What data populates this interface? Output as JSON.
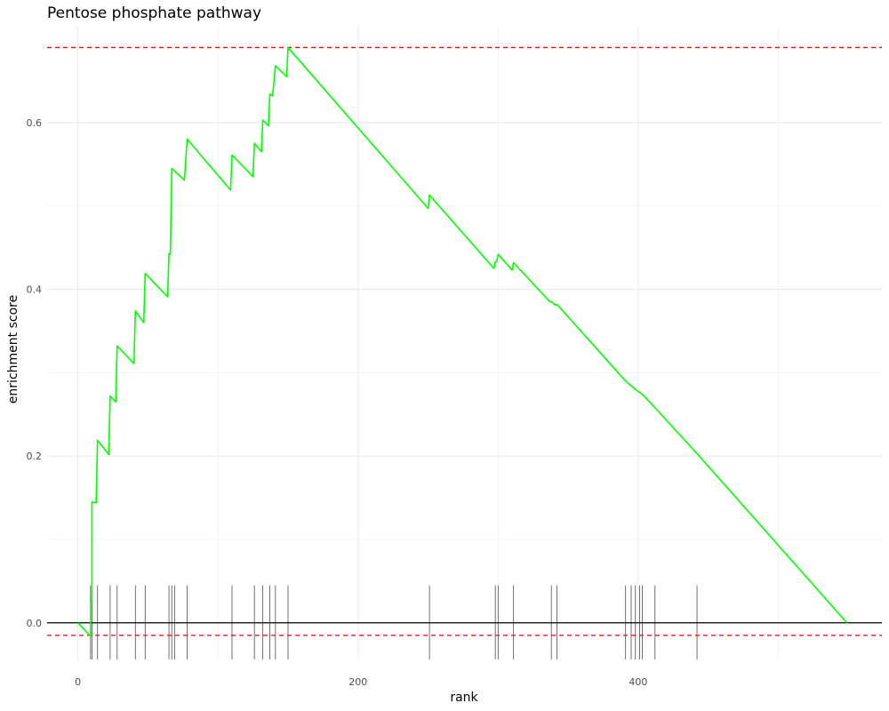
{
  "chart_data": {
    "type": "line",
    "title": "Pentose phosphate pathway",
    "xlabel": "rank",
    "ylabel": "enrichment score",
    "xlim": [
      -22,
      574
    ],
    "ylim": [
      -0.045,
      0.715
    ],
    "x_ticks": [
      0,
      200,
      400
    ],
    "y_ticks": [
      0.0,
      0.2,
      0.4,
      0.6
    ],
    "y_tick_labels": [
      "0.0",
      "0.2",
      "0.4",
      "0.6"
    ],
    "grid": true,
    "colors": {
      "running_score": "#00ff00",
      "threshold": "#ff0000",
      "baseline": "#000000",
      "hits": "#4d4d4d",
      "grid": "#ebebeb"
    },
    "thresholds": {
      "max": 0.69,
      "min": -0.015
    },
    "hit_ranks": [
      9,
      10,
      14,
      23,
      28,
      41,
      48,
      65,
      67,
      69,
      78,
      110,
      126,
      132,
      137,
      141,
      150,
      251,
      298,
      300,
      311,
      338,
      342,
      391,
      395,
      398,
      401,
      403,
      412,
      442
    ],
    "series": [
      {
        "values": [
          [
            0,
            0.0
          ],
          [
            9,
            -0.016
          ],
          [
            9,
            0.027
          ],
          [
            10,
            0.026
          ],
          [
            10,
            0.145
          ],
          [
            13,
            0.144
          ],
          [
            14,
            0.219
          ],
          [
            22,
            0.202
          ],
          [
            23,
            0.272
          ],
          [
            27,
            0.265
          ],
          [
            28,
            0.332
          ],
          [
            40,
            0.311
          ],
          [
            41,
            0.374
          ],
          [
            47,
            0.36
          ],
          [
            48,
            0.419
          ],
          [
            64,
            0.391
          ],
          [
            65,
            0.443
          ],
          [
            66,
            0.442
          ],
          [
            67,
            0.545
          ],
          [
            76,
            0.531
          ],
          [
            78,
            0.58
          ],
          [
            109,
            0.519
          ],
          [
            110,
            0.561
          ],
          [
            125,
            0.535
          ],
          [
            126,
            0.575
          ],
          [
            131,
            0.565
          ],
          [
            132,
            0.603
          ],
          [
            136,
            0.596
          ],
          [
            137,
            0.634
          ],
          [
            139,
            0.632
          ],
          [
            141,
            0.668
          ],
          [
            149,
            0.655
          ],
          [
            150,
            0.69
          ],
          [
            250,
            0.497
          ],
          [
            251,
            0.513
          ],
          [
            297,
            0.425
          ],
          [
            298,
            0.433
          ],
          [
            299,
            0.433
          ],
          [
            300,
            0.442
          ],
          [
            310,
            0.423
          ],
          [
            311,
            0.432
          ],
          [
            337,
            0.385
          ],
          [
            338,
            0.385
          ],
          [
            341,
            0.381
          ],
          [
            342,
            0.382
          ],
          [
            391,
            0.29
          ],
          [
            398,
            0.28
          ],
          [
            403,
            0.274
          ],
          [
            412,
            0.258
          ],
          [
            442,
            0.203
          ],
          [
            549,
            0.0
          ]
        ]
      }
    ]
  }
}
